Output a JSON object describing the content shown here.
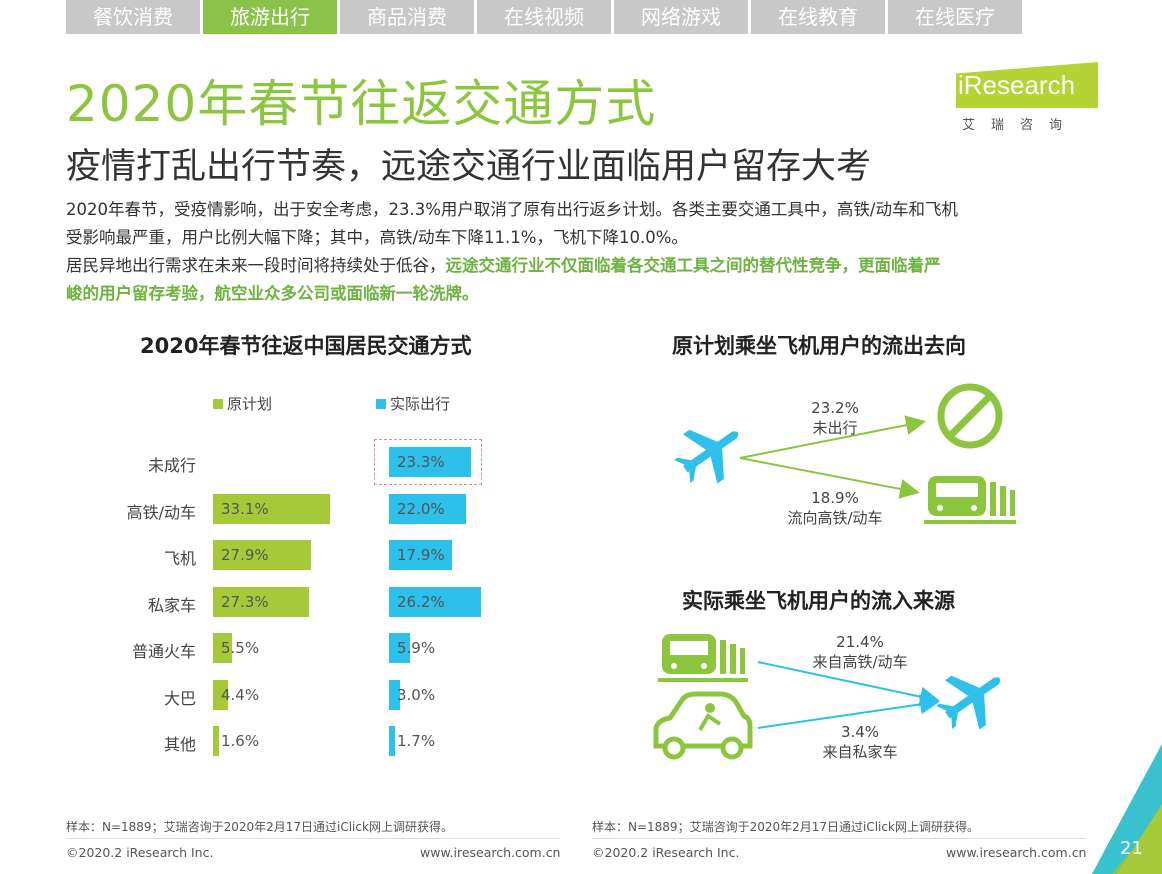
{
  "tabs": [
    "餐饮消费",
    "旅游出行",
    "商品消费",
    "在线视频",
    "网络游戏",
    "在线教育",
    "在线医疗"
  ],
  "active_tab": "旅游出行",
  "title": "2020年春节往返交通方式",
  "subtitle": "疫情打乱出行节奏，远途交通行业面临用户留存大考",
  "logo": {
    "name": "iResearch",
    "sub": "艾瑞咨询"
  },
  "para": {
    "line1": "2020年春节，受疫情影响，出于安全考虑，23.3%用户取消了原有出行返乡计划。各类主要交通工具中，高铁/动车和飞机",
    "line2": "受影响最严重，用户比例大幅下降；其中，高铁/动车下降11.1%，飞机下降10.0%。",
    "line3_plain": "居民异地出行需求在未来一段时间将持续处于低谷，",
    "line3_hl": "远途交通行业不仅面临着各交通工具之间的替代性竞争，更面临着严",
    "line4_hl": "峻的用户留存考验，航空业众多公司或面临新一轮洗牌。"
  },
  "chart_data": {
    "type": "bar",
    "title": "2020年春节往返中国居民交通方式",
    "categories": [
      "未成行",
      "高铁/动车",
      "飞机",
      "私家车",
      "普通火车",
      "大巴",
      "其他"
    ],
    "series": [
      {
        "name": "原计划",
        "values": [
          null,
          33.1,
          27.9,
          27.3,
          5.5,
          4.4,
          1.6
        ],
        "color": "#a6c93a"
      },
      {
        "name": "实际出行",
        "values": [
          23.3,
          22.0,
          17.9,
          26.2,
          5.9,
          3.0,
          1.7
        ],
        "color": "#2cc0ea"
      }
    ],
    "value_labels": {
      "原计划": [
        "",
        "33.1%",
        "27.9%",
        "27.3%",
        "5.5%",
        "4.4%",
        "1.6%"
      ],
      "实际出行": [
        "23.3%",
        "22.0%",
        "17.9%",
        "26.2%",
        "5.9%",
        "3.0%",
        "1.7%"
      ]
    }
  },
  "outflow": {
    "title": "原计划乘坐飞机用户的流出去向",
    "a_value": "23.2%",
    "a_label": "未出行",
    "b_value": "18.9%",
    "b_label": "流向高铁/动车"
  },
  "inflow": {
    "title": "实际乘坐飞机用户的流入来源",
    "a_value": "21.4%",
    "a_label": "来自高铁/动车",
    "b_value": "3.4%",
    "b_label": "来自私家车"
  },
  "footer": {
    "note": "样本：N=1889；艾瑞咨询于2020年2月17日通过iClick网上调研获得。",
    "copyright": "©2020.2 iResearch Inc.",
    "url": "www.iresearch.com.cn",
    "page": "21"
  },
  "colors": {
    "green": "#8cc63f",
    "blue": "#2cc0ea",
    "bar_green": "#a6c93a"
  }
}
